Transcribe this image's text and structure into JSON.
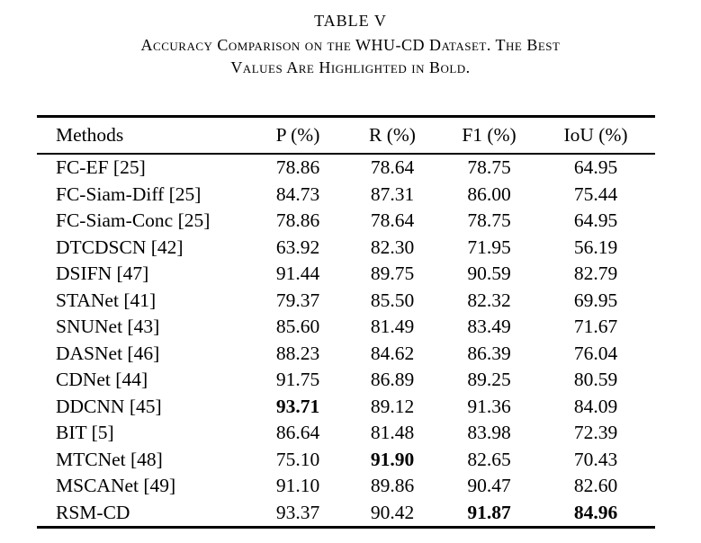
{
  "header": {
    "table_number": "TABLE V",
    "caption_lines": [
      "Accuracy Comparison on the WHU-CD Dataset. The Best",
      "Values Are Highlighted in Bold."
    ]
  },
  "chart_data": {
    "type": "table",
    "columns": [
      "Methods",
      "P (%)",
      "R (%)",
      "F1 (%)",
      "IoU (%)"
    ],
    "rows": [
      {
        "method": "FC-EF [25]",
        "values": [
          "78.86",
          "78.64",
          "78.75",
          "64.95"
        ],
        "bold": [
          false,
          false,
          false,
          false
        ]
      },
      {
        "method": "FC-Siam-Diff [25]",
        "values": [
          "84.73",
          "87.31",
          "86.00",
          "75.44"
        ],
        "bold": [
          false,
          false,
          false,
          false
        ]
      },
      {
        "method": "FC-Siam-Conc [25]",
        "values": [
          "78.86",
          "78.64",
          "78.75",
          "64.95"
        ],
        "bold": [
          false,
          false,
          false,
          false
        ]
      },
      {
        "method": "DTCDSCN [42]",
        "values": [
          "63.92",
          "82.30",
          "71.95",
          "56.19"
        ],
        "bold": [
          false,
          false,
          false,
          false
        ]
      },
      {
        "method": "DSIFN [47]",
        "values": [
          "91.44",
          "89.75",
          "90.59",
          "82.79"
        ],
        "bold": [
          false,
          false,
          false,
          false
        ]
      },
      {
        "method": "STANet [41]",
        "values": [
          "79.37",
          "85.50",
          "82.32",
          "69.95"
        ],
        "bold": [
          false,
          false,
          false,
          false
        ]
      },
      {
        "method": "SNUNet [43]",
        "values": [
          "85.60",
          "81.49",
          "83.49",
          "71.67"
        ],
        "bold": [
          false,
          false,
          false,
          false
        ]
      },
      {
        "method": "DASNet [46]",
        "values": [
          "88.23",
          "84.62",
          "86.39",
          "76.04"
        ],
        "bold": [
          false,
          false,
          false,
          false
        ]
      },
      {
        "method": "CDNet [44]",
        "values": [
          "91.75",
          "86.89",
          "89.25",
          "80.59"
        ],
        "bold": [
          false,
          false,
          false,
          false
        ]
      },
      {
        "method": "DDCNN [45]",
        "values": [
          "93.71",
          "89.12",
          "91.36",
          "84.09"
        ],
        "bold": [
          true,
          false,
          false,
          false
        ]
      },
      {
        "method": "BIT [5]",
        "values": [
          "86.64",
          "81.48",
          "83.98",
          "72.39"
        ],
        "bold": [
          false,
          false,
          false,
          false
        ]
      },
      {
        "method": "MTCNet [48]",
        "values": [
          "75.10",
          "91.90",
          "82.65",
          "70.43"
        ],
        "bold": [
          false,
          true,
          false,
          false
        ]
      },
      {
        "method": "MSCANet [49]",
        "values": [
          "91.10",
          "89.86",
          "90.47",
          "82.60"
        ],
        "bold": [
          false,
          false,
          false,
          false
        ]
      },
      {
        "method": "RSM-CD",
        "values": [
          "93.37",
          "90.42",
          "91.87",
          "84.96"
        ],
        "bold": [
          false,
          false,
          true,
          true
        ]
      }
    ]
  }
}
